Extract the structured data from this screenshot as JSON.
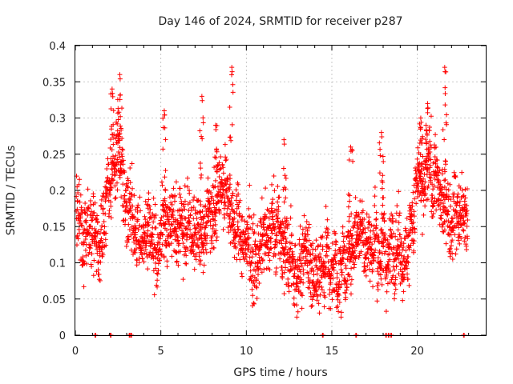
{
  "chart_data": {
    "type": "scatter",
    "title": "Day 146 of 2024, SRMTID for receiver p287",
    "xlabel": "GPS time / hours",
    "ylabel": "SRMTID / TECUs",
    "xlim": [
      0,
      24
    ],
    "ylim": [
      0,
      0.4
    ],
    "x_ticks": [
      0,
      5,
      10,
      15,
      20
    ],
    "x_tick_labels": [
      "0",
      "5",
      "10",
      "15",
      "20"
    ],
    "y_ticks": [
      0,
      0.05,
      0.1,
      0.15,
      0.2,
      0.25,
      0.3,
      0.35,
      0.4
    ],
    "y_tick_labels": [
      "0",
      "0.05",
      "0.1",
      "0.15",
      "0.2",
      "0.25",
      "0.3",
      "0.35",
      "0.4"
    ],
    "grid": true,
    "marker": "+",
    "color": "#ff0000",
    "series": [
      {
        "name": "SRMTID",
        "profile_x": [
          0,
          0.5,
          1,
          1.5,
          2,
          2.5,
          3,
          3.5,
          4,
          4.5,
          5,
          5.5,
          6,
          6.5,
          7,
          7.5,
          8,
          8.5,
          9,
          9.5,
          10,
          10.5,
          11,
          11.5,
          12,
          12.5,
          13,
          13.5,
          14,
          14.5,
          15,
          15.5,
          16,
          16.5,
          17,
          17.5,
          18,
          18.5,
          19,
          19.5,
          20,
          20.5,
          21,
          21.5,
          22,
          22.5
        ],
        "profile_y": [
          0.16,
          0.14,
          0.12,
          0.13,
          0.2,
          0.24,
          0.19,
          0.14,
          0.12,
          0.13,
          0.12,
          0.16,
          0.17,
          0.15,
          0.14,
          0.16,
          0.17,
          0.19,
          0.18,
          0.15,
          0.13,
          0.12,
          0.13,
          0.14,
          0.13,
          0.11,
          0.1,
          0.1,
          0.09,
          0.1,
          0.09,
          0.1,
          0.11,
          0.13,
          0.14,
          0.13,
          0.12,
          0.12,
          0.11,
          0.13,
          0.2,
          0.22,
          0.21,
          0.18,
          0.16,
          0.15
        ],
        "spikes": [
          {
            "x": 2.15,
            "y": 0.34
          },
          {
            "x": 2.6,
            "y": 0.36
          },
          {
            "x": 5.2,
            "y": 0.31
          },
          {
            "x": 7.4,
            "y": 0.33
          },
          {
            "x": 8.2,
            "y": 0.29
          },
          {
            "x": 9.15,
            "y": 0.37
          },
          {
            "x": 12.2,
            "y": 0.27
          },
          {
            "x": 16.1,
            "y": 0.26
          },
          {
            "x": 17.9,
            "y": 0.28
          },
          {
            "x": 20.2,
            "y": 0.3
          },
          {
            "x": 20.6,
            "y": 0.32
          },
          {
            "x": 21.6,
            "y": 0.37
          }
        ],
        "zero_points_x": [
          1.15,
          2.05,
          3.15,
          3.25,
          14.45,
          16.4,
          18.15,
          18.3,
          18.45,
          22.7
        ],
        "range_x": [
          0.05,
          22.95
        ],
        "approx_count": 2600
      }
    ]
  }
}
